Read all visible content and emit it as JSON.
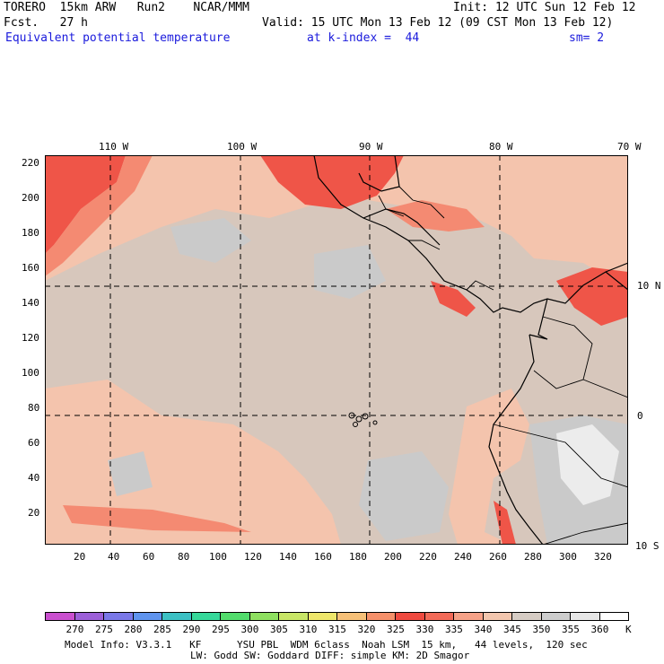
{
  "header": {
    "model": "TORERO  15km ARW   Run2    NCAR/MMM",
    "init": "Init: 12 UTC Sun 12 Feb 12",
    "fcst": "Fcst.   27 h",
    "valid": "Valid: 15 UTC Mon 13 Feb 12 (09 CST Mon 13 Feb 12)",
    "field": "Equivalent potential temperature",
    "kindex": "at k-index =  44",
    "sm": "sm= 2"
  },
  "axes": {
    "top_lon": [
      "110 W",
      "100 W",
      "90 W",
      "80 W",
      "70 W"
    ],
    "right_lat": [
      "10 N",
      "0",
      "10 S"
    ],
    "left_y": [
      "220",
      "200",
      "180",
      "160",
      "140",
      "120",
      "100",
      "80",
      "60",
      "40",
      "20"
    ],
    "bottom_x": [
      "20",
      "40",
      "60",
      "80",
      "100",
      "120",
      "140",
      "160",
      "180",
      "200",
      "220",
      "240",
      "260",
      "280",
      "300",
      "320"
    ]
  },
  "colorbar": {
    "labels": [
      "270",
      "275",
      "280",
      "285",
      "290",
      "295",
      "300",
      "305",
      "310",
      "315",
      "320",
      "325",
      "330",
      "335",
      "340",
      "345",
      "350",
      "355",
      "360"
    ],
    "unit": "K",
    "colors": [
      "#c94fce",
      "#9c5fd8",
      "#7a78e8",
      "#5f94ee",
      "#3cc0c4",
      "#36d89a",
      "#52dc6c",
      "#8ee060",
      "#c8e666",
      "#eee66a",
      "#f6c078",
      "#f5906a",
      "#ef4a40",
      "#f26a58",
      "#f6a288",
      "#f2c6ae",
      "#d6ccc4",
      "#cdcdcd",
      "#e6e6e6",
      "#ffffff"
    ]
  },
  "footer": {
    "line1": "Model Info: V3.3.1   KF      YSU PBL  WDM 6class  Noah LSM  15 km,   44 levels,  120 sec",
    "line2": "LW: Godd SW: Goddard DIFF: simple KM: 2D Smagor"
  }
}
